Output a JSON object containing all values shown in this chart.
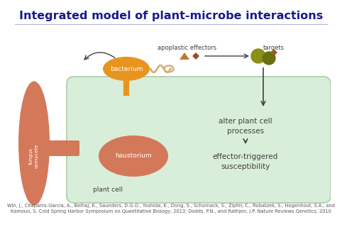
{
  "title": "Integrated model of plant-microbe interactions",
  "title_color": "#1a1a8c",
  "title_fontsize": 11.5,
  "bg_color": "#ffffff",
  "plant_cell_bg": "#d8eed8",
  "plant_cell_border": "#aaccaa",
  "fungus_color": "#d4785a",
  "bacterium_color": "#e89520",
  "haustorium_color": "#d4785a",
  "effector_triangle_color": "#c07830",
  "effector_diamond_color": "#a04828",
  "target_circle1_color": "#8a9018",
  "target_circle2_color": "#6a7010",
  "target_diamond_color": "#906020",
  "arrow_color": "#404040",
  "text_color": "#404040",
  "flagellum_color": "#d4b080",
  "stem_color": "#e89520",
  "citation_text": "Win, J., Chaparro-Garcia, A., Belhaj, K., Saunders, D.G.O., Yoshida, K., Dong, S., Schornack, S., Zipfel, C., Robatzek, S., Hogenhout, S.A., and\nKamoun, S. Cold Spring Harbor Symposium on Quantitative Biology, 2013; Dodds, P.N., and Rathjen, J.P. Nature Reviews Genetics, 2010",
  "citation_fontsize": 4.8,
  "separator_color": "#9999cc"
}
